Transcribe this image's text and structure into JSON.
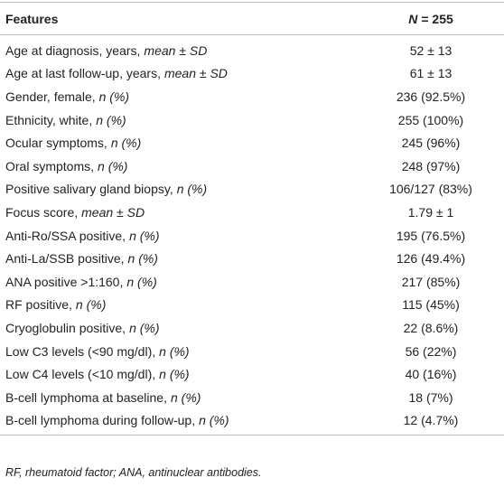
{
  "header": {
    "features": "Features",
    "n_symbol": "N",
    "n_value": "= 255"
  },
  "rows": [
    {
      "label": "Age at diagnosis, years,",
      "label_italic": "mean ± SD",
      "value": "52 ± 13"
    },
    {
      "label": "Age at last follow-up, years,",
      "label_italic": "mean ± SD",
      "value": "61 ± 13"
    },
    {
      "label": "Gender, female,",
      "label_italic": "n (%)",
      "value": "236 (92.5%)"
    },
    {
      "label": "Ethnicity, white,",
      "label_italic": "n (%)",
      "value": "255 (100%)"
    },
    {
      "label": "Ocular symptoms,",
      "label_italic": "n (%)",
      "value": "245 (96%)"
    },
    {
      "label": "Oral symptoms,",
      "label_italic": "n (%)",
      "value": "248 (97%)"
    },
    {
      "label": "Positive salivary gland biopsy,",
      "label_italic": "n (%)",
      "value": "106/127 (83%)"
    },
    {
      "label": "Focus score,",
      "label_italic": "mean ± SD",
      "value": "1.79 ± 1"
    },
    {
      "label": "Anti-Ro/SSA positive,",
      "label_italic": "n (%)",
      "value": "195 (76.5%)"
    },
    {
      "label": "Anti-La/SSB positive,",
      "label_italic": "n (%)",
      "value": "126 (49.4%)"
    },
    {
      "label": "ANA positive >1:160,",
      "label_italic": "n (%)",
      "value": "217 (85%)"
    },
    {
      "label": "RF positive,",
      "label_italic": "n (%)",
      "value": "115 (45%)"
    },
    {
      "label": "Cryoglobulin positive,",
      "label_italic": "n (%)",
      "value": "22 (8.6%)"
    },
    {
      "label": "Low C3 levels (<90 mg/dl),",
      "label_italic": "n (%)",
      "value": "56 (22%)"
    },
    {
      "label": "Low C4 levels (<10 mg/dl),",
      "label_italic": "n (%)",
      "value": "40 (16%)"
    },
    {
      "label": "B-cell lymphoma at baseline,",
      "label_italic": "n (%)",
      "value": "18 (7%)"
    },
    {
      "label": "B-cell lymphoma during follow-up,",
      "label_italic": "n (%)",
      "value": "12 (4.7%)"
    }
  ],
  "footnote": "RF, rheumatoid factor; ANA, antinuclear antibodies."
}
